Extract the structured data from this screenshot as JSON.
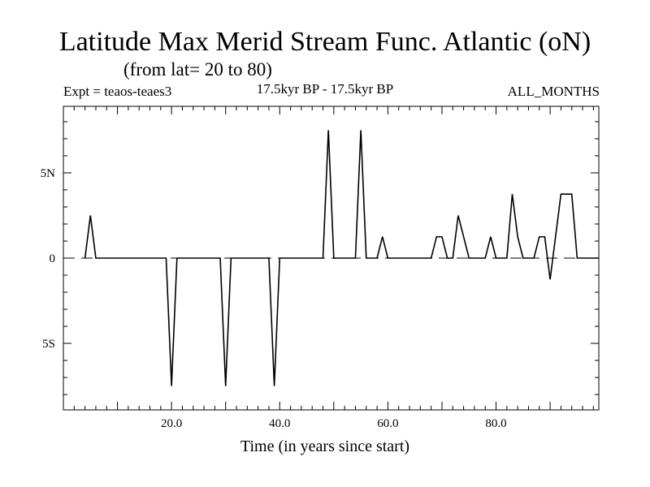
{
  "chart_data": {
    "type": "line",
    "title": "Latitude Max Merid Stream Func. Atlantic (oN)",
    "subtitle": "(from lat= 20 to 80)",
    "experiment": "Expt = teaos-teaes3",
    "period": "17.5kyr BP - 17.5kyr BP",
    "months": "ALL_MONTHS",
    "xlabel": "Time (in years since start)",
    "ylabel": "",
    "xlim": [
      0,
      99
    ],
    "ylim": [
      -8.9,
      8.9
    ],
    "x_ticks": [
      {
        "value": 20,
        "label": "20.0"
      },
      {
        "value": 40,
        "label": "40.0"
      },
      {
        "value": 60,
        "label": "60.0"
      },
      {
        "value": 80,
        "label": "80.0"
      }
    ],
    "y_ticks": [
      {
        "value": 5,
        "label": "5N"
      },
      {
        "value": 0,
        "label": "0"
      },
      {
        "value": -5,
        "label": "5S"
      }
    ],
    "zero_line": "dashed",
    "series": [
      {
        "color": "#000000",
        "x": [
          4,
          5,
          6,
          7,
          8,
          9,
          10,
          11,
          12,
          13,
          14,
          15,
          16,
          17,
          18,
          19,
          20,
          21,
          22,
          23,
          24,
          25,
          26,
          27,
          28,
          29,
          30,
          31,
          32,
          33,
          34,
          35,
          36,
          37,
          38,
          39,
          40,
          41,
          42,
          43,
          44,
          45,
          46,
          47,
          48,
          49,
          50,
          51,
          52,
          53,
          54,
          55,
          56,
          57,
          58,
          59,
          60,
          61,
          62,
          63,
          64,
          65,
          66,
          67,
          68,
          69,
          70,
          71,
          72,
          73,
          74,
          75,
          76,
          77,
          78,
          79,
          80,
          81,
          82,
          83,
          84,
          85,
          86,
          87,
          88,
          89,
          90,
          91,
          92,
          93,
          94,
          95,
          96,
          97,
          98,
          99
        ],
        "y": [
          0,
          2.5,
          0,
          0,
          0,
          0,
          0,
          0,
          0,
          0,
          0,
          0,
          0,
          0,
          0,
          0,
          -7.5,
          0,
          0,
          0,
          0,
          0,
          0,
          0,
          0,
          0,
          -7.5,
          0,
          0,
          0,
          0,
          0,
          0,
          0,
          0,
          -7.5,
          0,
          0,
          0,
          0,
          0,
          0,
          0,
          0,
          0,
          7.5,
          0,
          0,
          0,
          0,
          0,
          7.5,
          0,
          0,
          0,
          1.25,
          0,
          0,
          0,
          0,
          0,
          0,
          0,
          0,
          0,
          1.25,
          1.25,
          0,
          0,
          2.5,
          1.25,
          0,
          0,
          0,
          0,
          1.25,
          0,
          0,
          0,
          3.75,
          1.25,
          0,
          0,
          0,
          1.25,
          1.25,
          -1.25,
          1.25,
          3.75,
          3.75,
          3.75,
          0,
          0,
          0,
          0,
          0
        ]
      }
    ]
  }
}
